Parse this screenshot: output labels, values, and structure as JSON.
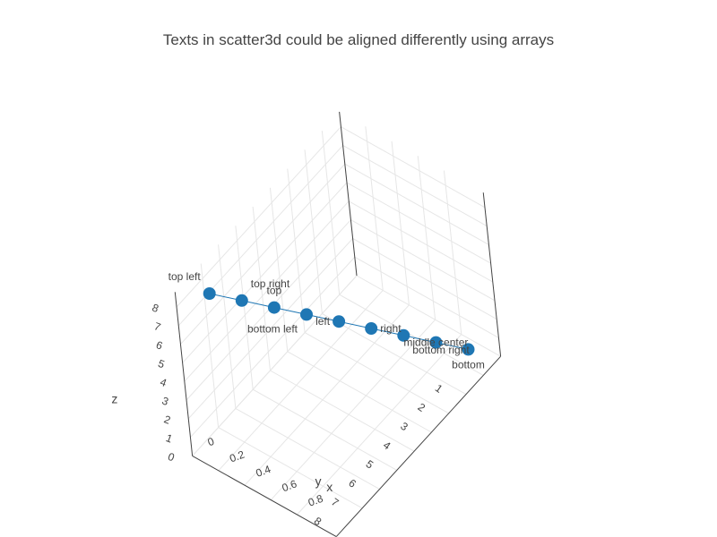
{
  "chart_data": {
    "type": "scatter",
    "mode": "lines+markers+text",
    "title": "Texts in scatter3d could be aligned differently using arrays",
    "series": [
      {
        "x": [
          1,
          2,
          3,
          4,
          5,
          6,
          7,
          8,
          9
        ],
        "y": [
          1,
          0.9,
          0.8,
          0.7,
          0.6,
          0.5,
          0.4,
          0.3,
          0.2
        ],
        "z": [
          1,
          2,
          3,
          4,
          5,
          6,
          7,
          8,
          9
        ],
        "text": [
          "bottom",
          "middle center",
          "bottom right",
          "right",
          "left",
          "bottom left",
          "top",
          "top right",
          "top left"
        ],
        "color": "#1f77b4"
      }
    ],
    "axes": {
      "x": {
        "title": "x",
        "tick_labels": [
          "1",
          "2",
          "3",
          "4",
          "5",
          "6",
          "7",
          "8"
        ]
      },
      "y": {
        "title": "y",
        "tick_labels": [
          "0",
          "0.2",
          "0.4",
          "0.6",
          "0.8"
        ]
      },
      "z": {
        "title": "z",
        "tick_labels": [
          "0",
          "1",
          "2",
          "3",
          "4",
          "5",
          "6",
          "7",
          "8"
        ]
      }
    }
  }
}
